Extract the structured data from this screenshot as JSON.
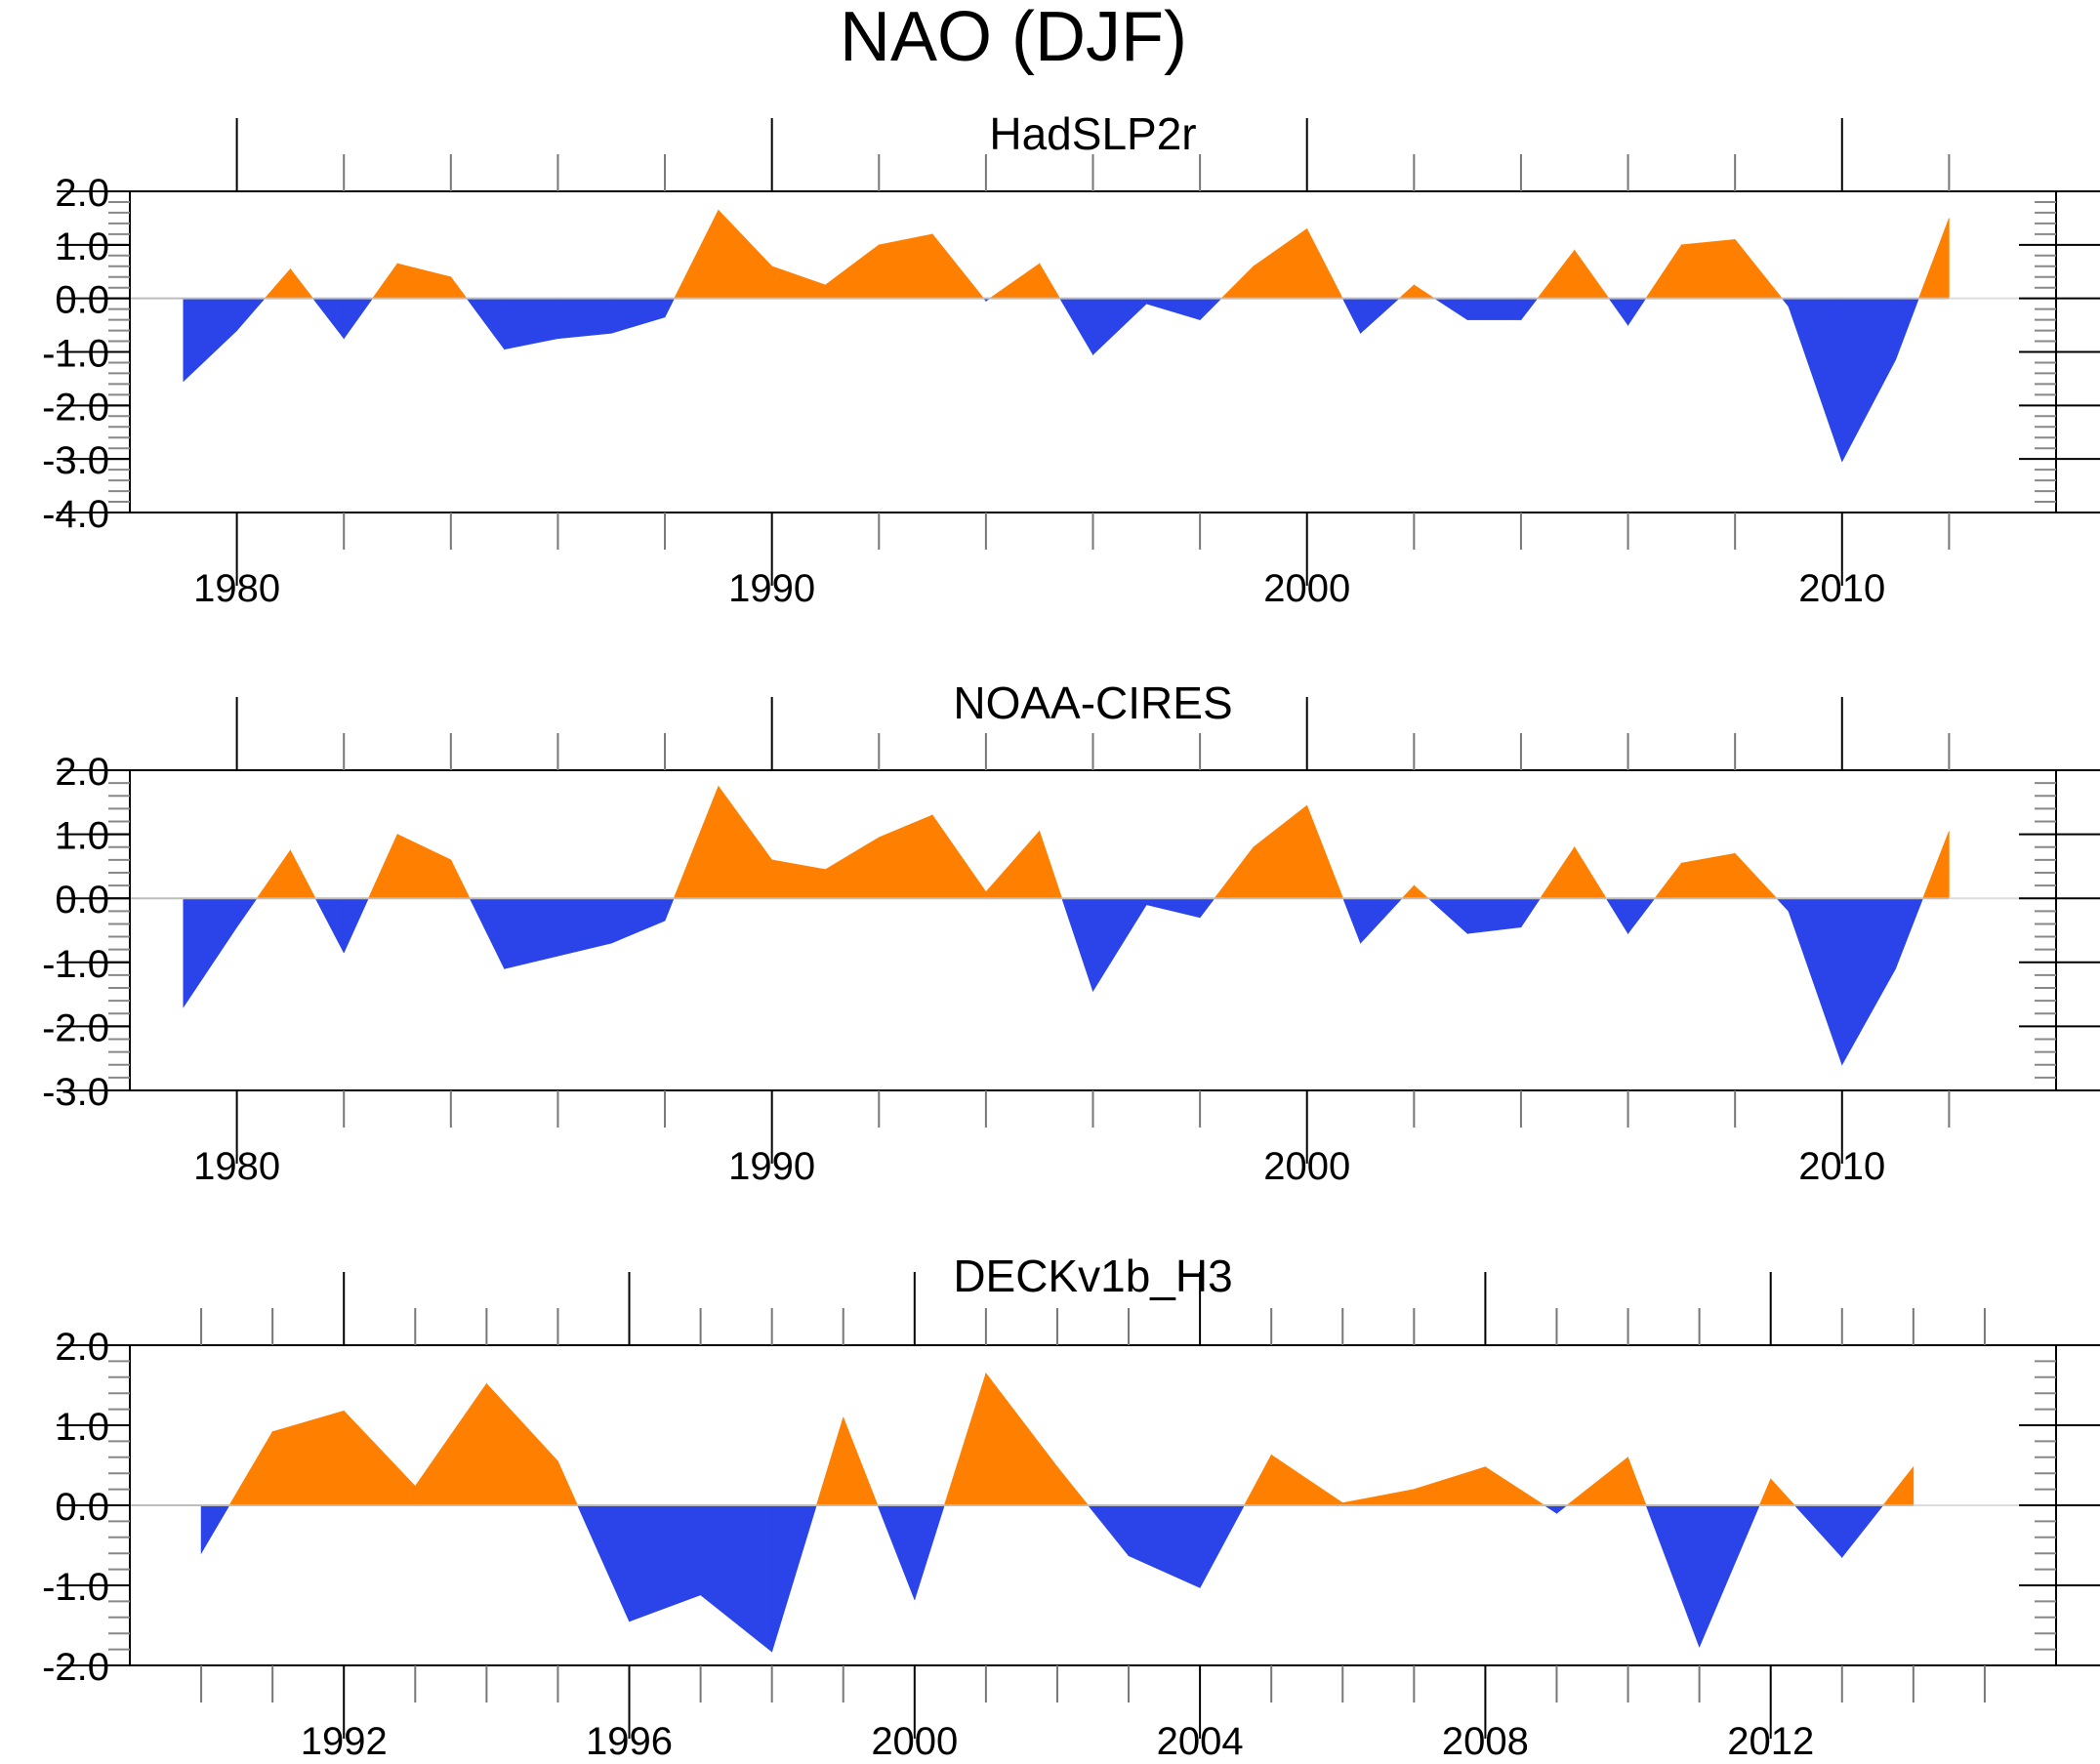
{
  "figure_title": "NAO (DJF)",
  "colors": {
    "positive": "#ff8000",
    "negative": "#2a44ea",
    "axis": "#000000",
    "zero_line": "#bdbdbd"
  },
  "chart_data": [
    {
      "type": "area",
      "title": "HadSLP2r",
      "xlabel": "",
      "ylabel": "",
      "xlim": [
        1978,
        2014
      ],
      "ylim": [
        -4.0,
        2.0
      ],
      "xticks": [
        1980,
        1990,
        2000,
        2010
      ],
      "xtick_labels": [
        "1980",
        "1990",
        "2000",
        "2010"
      ],
      "yticks": [
        2.0,
        1.0,
        0.0,
        -1.0,
        -2.0,
        -3.0,
        -4.0
      ],
      "ytick_labels": [
        "2.0",
        "1.0",
        "0.0",
        "-1.0",
        "-2.0",
        "-3.0",
        "-4.0"
      ],
      "x": [
        1979,
        1980,
        1981,
        1982,
        1983,
        1984,
        1985,
        1986,
        1987,
        1988,
        1989,
        1990,
        1991,
        1992,
        1993,
        1994,
        1995,
        1996,
        1997,
        1998,
        1999,
        2000,
        2001,
        2002,
        2003,
        2004,
        2005,
        2006,
        2007,
        2008,
        2009,
        2010,
        2011,
        2012
      ],
      "values": [
        -1.55,
        -0.6,
        0.55,
        -0.75,
        0.65,
        0.4,
        -0.95,
        -0.75,
        -0.65,
        -0.35,
        1.65,
        0.6,
        0.25,
        1.0,
        1.2,
        -0.05,
        0.65,
        -1.05,
        -0.1,
        -0.4,
        0.6,
        1.3,
        -0.65,
        0.25,
        -0.4,
        -0.4,
        0.9,
        -0.5,
        1.0,
        1.1,
        -0.15,
        -3.05,
        -1.15,
        1.5
      ],
      "grid": false
    },
    {
      "type": "area",
      "title": "NOAA-CIRES",
      "xlabel": "",
      "ylabel": "",
      "xlim": [
        1978,
        2014
      ],
      "ylim": [
        -3.0,
        2.0
      ],
      "xticks": [
        1980,
        1990,
        2000,
        2010
      ],
      "xtick_labels": [
        "1980",
        "1990",
        "2000",
        "2010"
      ],
      "yticks": [
        2.0,
        1.0,
        0.0,
        -1.0,
        -2.0,
        -3.0
      ],
      "ytick_labels": [
        "2.0",
        "1.0",
        "0.0",
        "-1.0",
        "-2.0",
        "-3.0"
      ],
      "x": [
        1979,
        1980,
        1981,
        1982,
        1983,
        1984,
        1985,
        1986,
        1987,
        1988,
        1989,
        1990,
        1991,
        1992,
        1993,
        1994,
        1995,
        1996,
        1997,
        1998,
        1999,
        2000,
        2001,
        2002,
        2003,
        2004,
        2005,
        2006,
        2007,
        2008,
        2009,
        2010,
        2011,
        2012
      ],
      "values": [
        -1.7,
        -0.45,
        0.75,
        -0.85,
        1.0,
        0.6,
        -1.1,
        -0.9,
        -0.7,
        -0.35,
        1.75,
        0.6,
        0.45,
        0.95,
        1.3,
        0.1,
        1.05,
        -1.45,
        -0.1,
        -0.3,
        0.8,
        1.45,
        -0.7,
        0.2,
        -0.55,
        -0.45,
        0.8,
        -0.55,
        0.55,
        0.7,
        -0.2,
        -2.6,
        -1.1,
        1.05
      ],
      "grid": false
    },
    {
      "type": "area",
      "title": "DECKv1b_H3",
      "xlabel": "",
      "ylabel": "",
      "xlim": [
        1989,
        2016
      ],
      "ylim": [
        -2.0,
        2.0
      ],
      "xticks": [
        1992,
        1996,
        2000,
        2004,
        2008,
        2012
      ],
      "xtick_labels": [
        "1992",
        "1996",
        "2000",
        "2004",
        "2008",
        "2012"
      ],
      "yticks": [
        2.0,
        1.0,
        0.0,
        -1.0,
        -2.0
      ],
      "ytick_labels": [
        "2.0",
        "1.0",
        "0.0",
        "-1.0",
        "-2.0"
      ],
      "x": [
        1990,
        1991,
        1992,
        1993,
        1994,
        1995,
        1996,
        1997,
        1998,
        1999,
        2000,
        2001,
        2002,
        2003,
        2004,
        2005,
        2006,
        2007,
        2008,
        2009,
        2010,
        2011,
        2012,
        2013,
        2014
      ],
      "values": [
        -0.6,
        0.92,
        1.18,
        0.24,
        1.52,
        0.55,
        -1.45,
        -1.12,
        -1.83,
        1.1,
        -1.18,
        1.65,
        0.48,
        -0.63,
        -1.03,
        0.63,
        0.03,
        0.2,
        0.48,
        -0.1,
        0.6,
        -1.77,
        0.33,
        -0.65,
        0.48
      ],
      "grid": false
    }
  ]
}
